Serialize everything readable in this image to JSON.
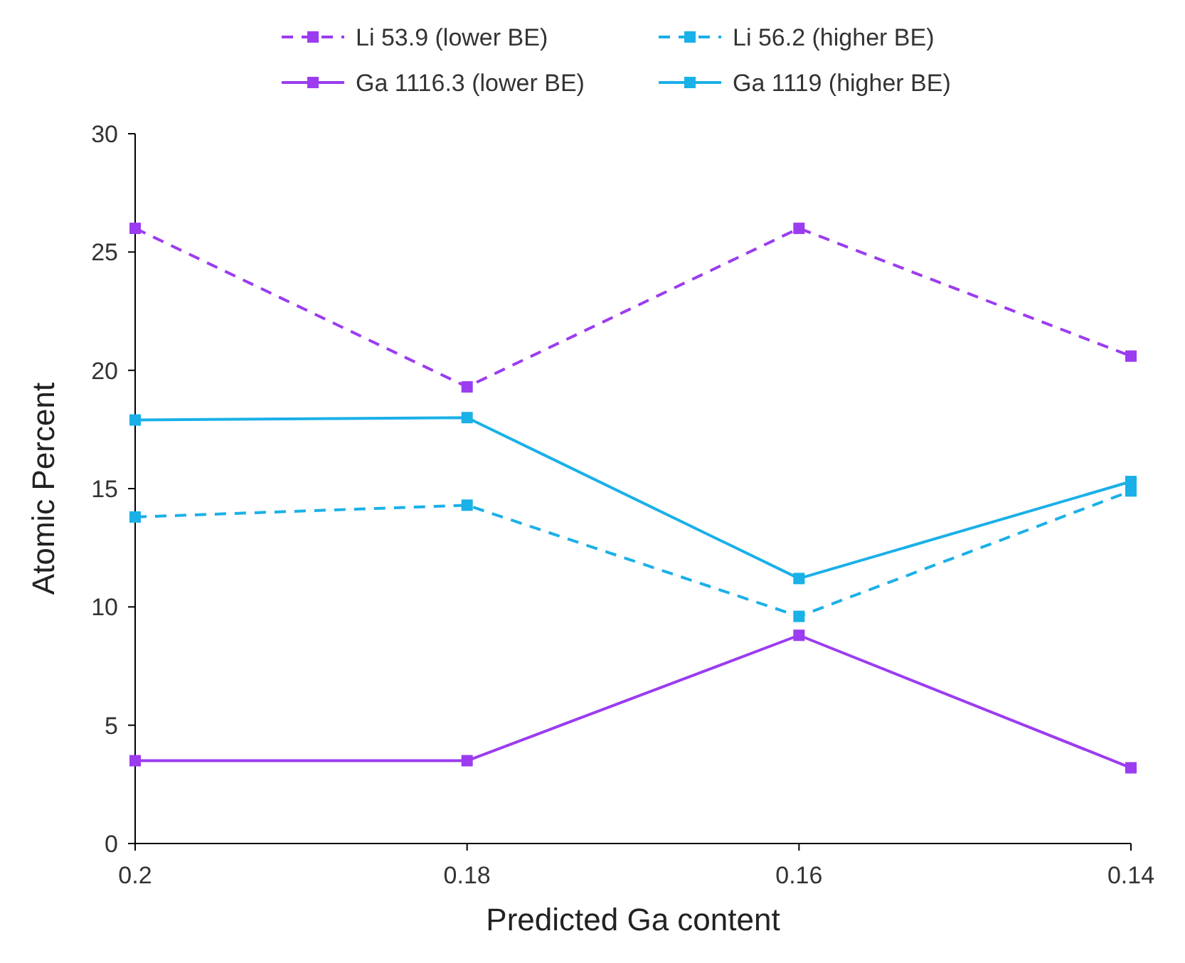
{
  "chart_data": {
    "type": "line",
    "xlabel": "Predicted Ga content",
    "ylabel": "Atomic Percent",
    "categories": [
      "0.2",
      "0.18",
      "0.16",
      "0.14"
    ],
    "ylim": [
      0,
      30
    ],
    "yticks": [
      0,
      5,
      10,
      15,
      20,
      25,
      30
    ],
    "grid": false,
    "legend": "top",
    "marker": "square",
    "series": [
      {
        "name": "Li 53.9 (lower BE)",
        "color": "#9b3cf0",
        "line_style": "dashed",
        "values": [
          26.0,
          19.3,
          26.0,
          20.6
        ]
      },
      {
        "name": "Li 56.2 (higher BE)",
        "color": "#1ab0e8",
        "line_style": "dashed",
        "values": [
          13.8,
          14.3,
          9.6,
          14.9
        ]
      },
      {
        "name": "Ga 1116.3 (lower BE)",
        "color": "#9b3cf0",
        "line_style": "solid",
        "values": [
          3.5,
          3.5,
          8.8,
          3.2
        ]
      },
      {
        "name": "Ga 1119 (higher BE)",
        "color": "#1ab0e8",
        "line_style": "solid",
        "values": [
          17.9,
          18.0,
          11.2,
          15.3
        ]
      }
    ]
  }
}
